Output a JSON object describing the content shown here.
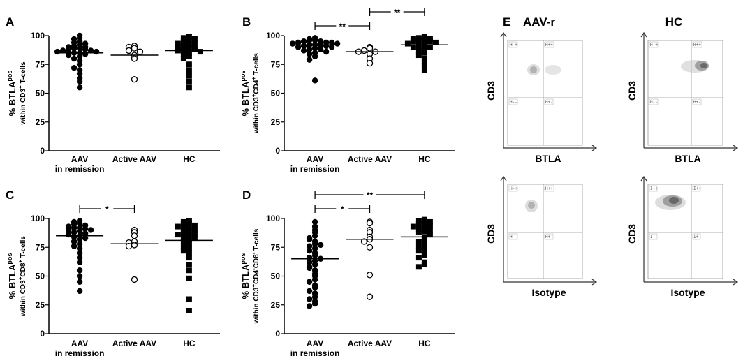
{
  "chart_data": [
    {
      "id": "A",
      "type": "scatter",
      "panel_label": "A",
      "ylabel_main": "% BTLA",
      "ylabel_sup": "pos",
      "ylabel_sub_parts": [
        {
          "t": "within CD3"
        },
        {
          "t": "+",
          "sup": true
        },
        {
          "t": " T-cells"
        }
      ],
      "ylim": [
        0,
        100
      ],
      "yticks": [
        0,
        25,
        50,
        75,
        100
      ],
      "categories": [
        [
          "AAV",
          "in remission"
        ],
        [
          "Active AAV"
        ],
        [
          "HC"
        ]
      ],
      "series": [
        {
          "name": "AAV in remission",
          "marker": "circle-filled",
          "median": 85,
          "values": [
            100,
            98,
            97,
            95,
            94,
            93,
            92,
            91,
            90,
            90,
            89,
            89,
            88,
            88,
            87,
            87,
            86,
            86,
            85,
            85,
            84,
            83,
            82,
            80,
            78,
            75,
            72,
            70,
            67,
            63,
            60,
            55
          ]
        },
        {
          "name": "Active AAV",
          "marker": "circle-open",
          "median": 83,
          "values": [
            91,
            90,
            89,
            87,
            86,
            83,
            80,
            62
          ]
        },
        {
          "name": "HC",
          "marker": "square-filled",
          "median": 87,
          "values": [
            99,
            98,
            97,
            96,
            95,
            94,
            93,
            92,
            91,
            90,
            90,
            89,
            88,
            88,
            87,
            86,
            85,
            84,
            82,
            80,
            75,
            70,
            65,
            60,
            55
          ]
        }
      ],
      "significance": []
    },
    {
      "id": "B",
      "type": "scatter",
      "panel_label": "B",
      "ylabel_main": "% BTLA",
      "ylabel_sup": "pos",
      "ylabel_sub_parts": [
        {
          "t": "within CD3"
        },
        {
          "t": "+",
          "sup": true
        },
        {
          "t": "CD4"
        },
        {
          "t": "+",
          "sup": true
        },
        {
          "t": " T-cells"
        }
      ],
      "ylim": [
        0,
        100
      ],
      "yticks": [
        0,
        25,
        50,
        75,
        100
      ],
      "categories": [
        [
          "AAV",
          "in remission"
        ],
        [
          "Active AAV"
        ],
        [
          "HC"
        ]
      ],
      "series": [
        {
          "name": "AAV in remission",
          "marker": "circle-filled",
          "median": 92,
          "values": [
            98,
            97,
            96,
            96,
            95,
            95,
            94,
            94,
            94,
            93,
            93,
            93,
            92,
            92,
            92,
            91,
            91,
            90,
            90,
            89,
            88,
            88,
            87,
            86,
            85,
            84,
            82,
            79,
            61
          ]
        },
        {
          "name": "Active AAV",
          "marker": "circle-open",
          "median": 86,
          "values": [
            90,
            89,
            87,
            86,
            86,
            84,
            80,
            76
          ]
        },
        {
          "name": "HC",
          "marker": "square-filled",
          "median": 92,
          "values": [
            99,
            98,
            97,
            97,
            96,
            96,
            95,
            95,
            94,
            93,
            92,
            91,
            90,
            90,
            88,
            87,
            85,
            83,
            80,
            77,
            74,
            70
          ]
        }
      ],
      "significance": [
        {
          "from": 0,
          "to": 1,
          "label": "**",
          "level": 1
        },
        {
          "from": 1,
          "to": 2,
          "label": "**",
          "level": 2
        }
      ]
    },
    {
      "id": "C",
      "type": "scatter",
      "panel_label": "C",
      "ylabel_main": "% BTLA",
      "ylabel_sup": "pos",
      "ylabel_sub_parts": [
        {
          "t": "within CD3"
        },
        {
          "t": "+",
          "sup": true
        },
        {
          "t": "CD8"
        },
        {
          "t": "+",
          "sup": true
        },
        {
          "t": " T-cells"
        }
      ],
      "ylim": [
        0,
        100
      ],
      "yticks": [
        0,
        25,
        50,
        75,
        100
      ],
      "categories": [
        [
          "AAV",
          "in remission"
        ],
        [
          "Active AAV"
        ],
        [
          "HC"
        ]
      ],
      "series": [
        {
          "name": "AAV in remission",
          "marker": "circle-filled",
          "median": 85,
          "values": [
            98,
            97,
            96,
            95,
            94,
            93,
            92,
            92,
            91,
            90,
            90,
            89,
            88,
            87,
            86,
            85,
            84,
            83,
            82,
            80,
            78,
            76,
            74,
            70,
            66,
            62,
            55,
            50,
            45,
            37
          ]
        },
        {
          "name": "Active AAV",
          "marker": "circle-open",
          "median": 78,
          "values": [
            90,
            88,
            85,
            80,
            79,
            77,
            76,
            47
          ]
        },
        {
          "name": "HC",
          "marker": "square-filled",
          "median": 81,
          "values": [
            98,
            97,
            96,
            95,
            94,
            93,
            92,
            91,
            90,
            89,
            88,
            87,
            86,
            85,
            84,
            83,
            82,
            80,
            78,
            76,
            74,
            72,
            70,
            66,
            60,
            55,
            48,
            30,
            20
          ]
        }
      ],
      "significance": [
        {
          "from": 0,
          "to": 1,
          "label": "*",
          "level": 1
        }
      ]
    },
    {
      "id": "D",
      "type": "scatter",
      "panel_label": "D",
      "ylabel_main": "% BTLA",
      "ylabel_sup": "pos",
      "ylabel_sub_parts": [
        {
          "t": "within CD3"
        },
        {
          "t": "+",
          "sup": true
        },
        {
          "t": "CD4"
        },
        {
          "t": "-",
          "sup": true
        },
        {
          "t": "CD8"
        },
        {
          "t": "-",
          "sup": true
        },
        {
          "t": " T-cells"
        }
      ],
      "ylim": [
        0,
        100
      ],
      "yticks": [
        0,
        25,
        50,
        75,
        100
      ],
      "categories": [
        [
          "AAV",
          "in remission"
        ],
        [
          "Active AAV"
        ],
        [
          "HC"
        ]
      ],
      "series": [
        {
          "name": "AAV in remission",
          "marker": "circle-filled",
          "median": 65,
          "values": [
            97,
            93,
            90,
            88,
            85,
            83,
            80,
            78,
            76,
            74,
            72,
            70,
            68,
            66,
            65,
            63,
            60,
            58,
            55,
            52,
            50,
            47,
            45,
            42,
            40,
            37,
            35,
            32,
            30,
            28,
            26,
            24,
            82,
            77,
            62,
            57
          ]
        },
        {
          "name": "Active AAV",
          "marker": "circle-open",
          "median": 82,
          "values": [
            97,
            96,
            90,
            88,
            84,
            82,
            80,
            75,
            51,
            32
          ]
        },
        {
          "name": "HC",
          "marker": "square-filled",
          "median": 84,
          "values": [
            99,
            98,
            97,
            96,
            95,
            94,
            93,
            92,
            91,
            90,
            89,
            88,
            86,
            84,
            82,
            80,
            78,
            76,
            74,
            72,
            70,
            68,
            66,
            62,
            60,
            58
          ]
        }
      ],
      "significance": [
        {
          "from": 0,
          "to": 1,
          "label": "*",
          "level": 1
        },
        {
          "from": 0,
          "to": 2,
          "label": "**",
          "level": 2
        }
      ]
    }
  ],
  "flow": {
    "panel_label": "E",
    "col_titles": [
      "AAV-r",
      "HC"
    ],
    "plots": [
      {
        "y_label": "CD3",
        "x_label": "BTLA",
        "quadrants": [
          "H-+",
          "H++",
          "H--",
          "H+-"
        ]
      },
      {
        "y_label": "CD3",
        "x_label": "BTLA",
        "quadrants": [
          "H-+",
          "H++",
          "H--",
          "H+-"
        ]
      },
      {
        "y_label": "CD3",
        "x_label": "Isotype",
        "quadrants": [
          "H-+",
          "H++",
          "H--",
          "H+-"
        ]
      },
      {
        "y_label": "CD3",
        "x_label": "Isotype",
        "quadrants": [
          "I-+",
          "I++",
          "I--",
          "I+-"
        ]
      }
    ]
  }
}
